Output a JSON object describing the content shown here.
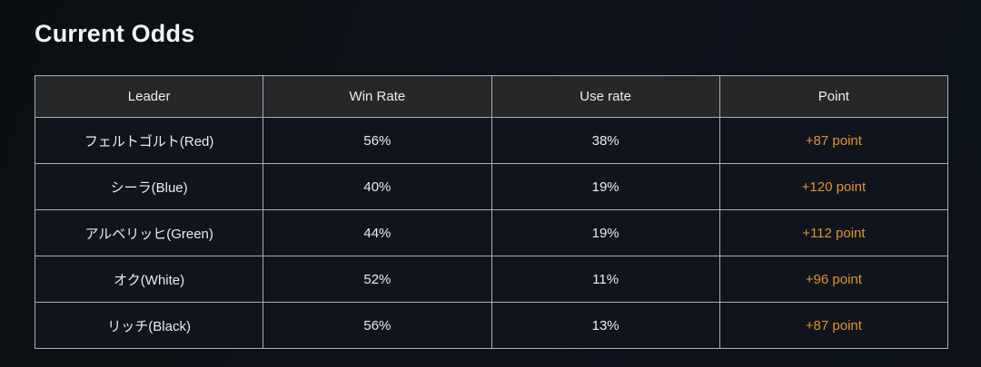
{
  "page": {
    "title": "Current Odds"
  },
  "table": {
    "columns": [
      "Leader",
      "Win Rate",
      "Use rate",
      "Point"
    ],
    "rows": [
      {
        "leader": "フェルトゴルト(Red)",
        "win_rate": "56%",
        "use_rate": "38%",
        "point": "+87 point"
      },
      {
        "leader": "シーラ(Blue)",
        "win_rate": "40%",
        "use_rate": "19%",
        "point": "+120 point"
      },
      {
        "leader": "アルベリッヒ(Green)",
        "win_rate": "44%",
        "use_rate": "19%",
        "point": "+112 point"
      },
      {
        "leader": "オク(White)",
        "win_rate": "52%",
        "use_rate": "11%",
        "point": "+96 point"
      },
      {
        "leader": "リッチ(Black)",
        "win_rate": "56%",
        "use_rate": "13%",
        "point": "+87 point"
      }
    ]
  },
  "colors": {
    "background_start": "#0b0f11",
    "background_end": "#0d131d",
    "header_bg": "#252729",
    "cell_bg": "#10151d",
    "border": "#a9aeb4",
    "title_text": "#f2f3f4",
    "cell_text": "#e9ebed",
    "point_accent": "#e0912f"
  }
}
